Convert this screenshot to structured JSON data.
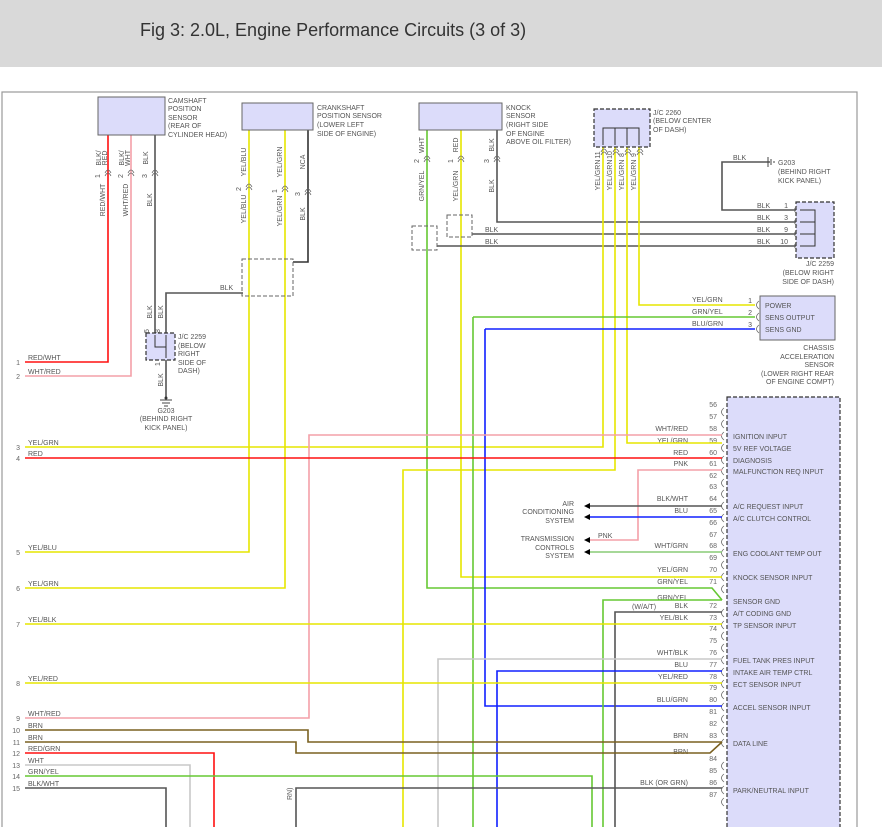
{
  "title": "Fig 3: 2.0L, Engine Performance Circuits (3 of 3)",
  "wire_colors": {
    "yellow": "#e6e600",
    "red": "#ff1010",
    "pink": "#f4a0a8",
    "green": "#66c833",
    "blue": "#1020ff",
    "black": "#555555",
    "brown": "#7a6020",
    "white": "#c8c8c8",
    "box": "#dcdcfa"
  },
  "components": {
    "camshaft": [
      "CAMSHAFT",
      "POSITION",
      "SENSOR",
      "(REAR OF",
      "CYLINDER HEAD)"
    ],
    "crankshaft": [
      "CRANKSHAFT",
      "POSITION SENSOR",
      "(LOWER LEFT",
      "SIDE OF ENGINE)"
    ],
    "knock": [
      "KNOCK",
      "SENSOR",
      "(RIGHT SIDE",
      "OF ENGINE",
      "ABOVE OIL FILTER)"
    ],
    "jc2260": [
      "J/C 2260",
      "(BELOW CENTER",
      "OF DASH)"
    ],
    "jc2259_left": [
      "J/C 2259",
      "(BELOW",
      "RIGHT",
      "SIDE OF",
      "DASH)"
    ],
    "g203_left": [
      "G203",
      "(BEHIND RIGHT",
      "KICK PANEL)"
    ],
    "g203_right": [
      "G203",
      "(BEHIND RIGHT",
      "KICK PANEL)"
    ],
    "jc2259_right": [
      "J/C 2259",
      "(BELOW RIGHT",
      "SIDE OF DASH)"
    ],
    "accel": [
      "CHASSIS",
      "ACCELERATION",
      "SENSOR",
      "(LOWER RIGHT REAR",
      "OF ENGINE COMPT)"
    ],
    "ac_system": [
      "AIR",
      "CONDITIONING",
      "SYSTEM"
    ],
    "trans_system": [
      "TRANSMISSION",
      "CONTROLS",
      "SYSTEM"
    ]
  },
  "sensor_pins": {
    "cam": [
      {
        "top": [
          "BLK/",
          "RED"
        ],
        "num": "1",
        "bottom": "RED/WHT"
      },
      {
        "top": [
          "BLK/",
          "WHT"
        ],
        "num": "2",
        "bottom": "WHT/RED"
      },
      {
        "top": [
          "BLK",
          ""
        ],
        "num": "3",
        "bottom": "BLK"
      }
    ],
    "crank": [
      {
        "top": "YEL/BLU",
        "num": "2",
        "bottom": "YEL/BLU"
      },
      {
        "top": "YEL/GRN",
        "num": "1",
        "bottom": "YEL/GRN"
      },
      {
        "top": "NCA",
        "num": "3",
        "bottom": "BLK"
      }
    ],
    "knock": [
      {
        "top": "WHT",
        "num": "2",
        "bottom": "GRN/YEL"
      },
      {
        "top": "RED",
        "num": "1",
        "bottom": "YEL/GRN"
      },
      {
        "top": "BLK",
        "num": "3",
        "bottom": "BLK"
      }
    ],
    "jc2260": [
      {
        "num": "11",
        "wire": "YEL/GRN"
      },
      {
        "num": "10",
        "wire": "YEL/GRN"
      },
      {
        "num": "8",
        "wire": "YEL/GRN"
      },
      {
        "num": "9",
        "wire": "YEL/GRN"
      }
    ],
    "jc2259_left": [
      {
        "num": "5",
        "wire": "BLK"
      },
      {
        "num": "8",
        "wire": "BLK"
      },
      {
        "num": "1",
        "wire": "BLK"
      }
    ],
    "jc2259_right": [
      {
        "num": "1",
        "wire": "BLK"
      },
      {
        "num": "3",
        "wire": "BLK"
      },
      {
        "num": "9",
        "wire": "BLK"
      },
      {
        "num": "10",
        "wire": "BLK"
      }
    ],
    "accel": [
      {
        "num": "1",
        "wire": "YEL/GRN",
        "fn": "POWER"
      },
      {
        "num": "2",
        "wire": "GRN/YEL",
        "fn": "SENS OUTPUT"
      },
      {
        "num": "3",
        "wire": "BLU/GRN",
        "fn": "SENS GND"
      }
    ]
  },
  "misc_labels": {
    "shield_blk": "BLK",
    "g203_blk": "BLK",
    "knock_blk1": "BLK",
    "knock_blk2": "BLK",
    "wat": "(W/A/T)",
    "pnk_tcs": "PNK",
    "or_grn_partial": "RN)"
  },
  "left_rows": [
    {
      "num": "1",
      "wire": "RED/WHT"
    },
    {
      "num": "2",
      "wire": "WHT/RED"
    },
    {
      "num": "3",
      "wire": "YEL/GRN"
    },
    {
      "num": "4",
      "wire": "RED"
    },
    {
      "num": "5",
      "wire": "YEL/BLU"
    },
    {
      "num": "6",
      "wire": "YEL/GRN"
    },
    {
      "num": "7",
      "wire": "YEL/BLK"
    },
    {
      "num": "8",
      "wire": "YEL/RED"
    },
    {
      "num": "9",
      "wire": "WHT/RED"
    },
    {
      "num": "10",
      "wire": "BRN"
    },
    {
      "num": "11",
      "wire": "BRN"
    },
    {
      "num": "12",
      "wire": "RED/GRN"
    },
    {
      "num": "13",
      "wire": "WHT"
    },
    {
      "num": "14",
      "wire": "GRN/YEL"
    },
    {
      "num": "15",
      "wire": "BLK/WHT"
    }
  ],
  "ecm_pins": [
    {
      "num": "56",
      "wire": "",
      "fn": ""
    },
    {
      "num": "57",
      "wire": "",
      "fn": ""
    },
    {
      "num": "58",
      "wire": "WHT/RED",
      "fn": "IGNITION INPUT"
    },
    {
      "num": "59",
      "wire": "YEL/GRN",
      "fn": "5V REF VOLTAGE"
    },
    {
      "num": "60",
      "wire": "RED",
      "fn": "DIAGNOSIS"
    },
    {
      "num": "61",
      "wire": "PNK",
      "fn": "MALFUNCTION REQ INPUT"
    },
    {
      "num": "62",
      "wire": "",
      "fn": ""
    },
    {
      "num": "63",
      "wire": "",
      "fn": ""
    },
    {
      "num": "64",
      "wire": "BLK/WHT",
      "fn": "A/C REQUEST INPUT"
    },
    {
      "num": "65",
      "wire": "BLU",
      "fn": "A/C CLUTCH CONTROL"
    },
    {
      "num": "66",
      "wire": "",
      "fn": ""
    },
    {
      "num": "67",
      "wire": "",
      "fn": ""
    },
    {
      "num": "68",
      "wire": "WHT/GRN",
      "fn": "ENG COOLANT TEMP OUT"
    },
    {
      "num": "69",
      "wire": "",
      "fn": ""
    },
    {
      "num": "70",
      "wire": "YEL/GRN",
      "fn": "KNOCK SENSOR INPUT"
    },
    {
      "num": "71",
      "wire": "GRN/YEL",
      "fn": ""
    },
    {
      "num": "",
      "wire": "GRN/YEL",
      "fn": "SENSOR GND"
    },
    {
      "num": "72",
      "wire": "BLK",
      "fn": "A/T CODING GND"
    },
    {
      "num": "73",
      "wire": "YEL/BLK",
      "fn": "TP SENSOR INPUT"
    },
    {
      "num": "74",
      "wire": "",
      "fn": ""
    },
    {
      "num": "75",
      "wire": "",
      "fn": ""
    },
    {
      "num": "76",
      "wire": "WHT/BLK",
      "fn": "FUEL TANK PRES INPUT"
    },
    {
      "num": "77",
      "wire": "BLU",
      "fn": "INTAKE AIR TEMP CTRL"
    },
    {
      "num": "78",
      "wire": "YEL/RED",
      "fn": "ECT SENSOR INPUT"
    },
    {
      "num": "79",
      "wire": "",
      "fn": ""
    },
    {
      "num": "80",
      "wire": "BLU/GRN",
      "fn": "ACCEL SENSOR INPUT"
    },
    {
      "num": "81",
      "wire": "",
      "fn": ""
    },
    {
      "num": "82",
      "wire": "",
      "fn": ""
    },
    {
      "num": "83",
      "wire": "BRN",
      "fn": "DATA LINE"
    },
    {
      "num": "",
      "wire": "BRN",
      "fn": ""
    },
    {
      "num": "84",
      "wire": "",
      "fn": ""
    },
    {
      "num": "85",
      "wire": "",
      "fn": ""
    },
    {
      "num": "86",
      "wire": "BLK (OR GRN)",
      "fn": "PARK/NEUTRAL INPUT"
    },
    {
      "num": "87",
      "wire": "",
      "fn": ""
    }
  ]
}
